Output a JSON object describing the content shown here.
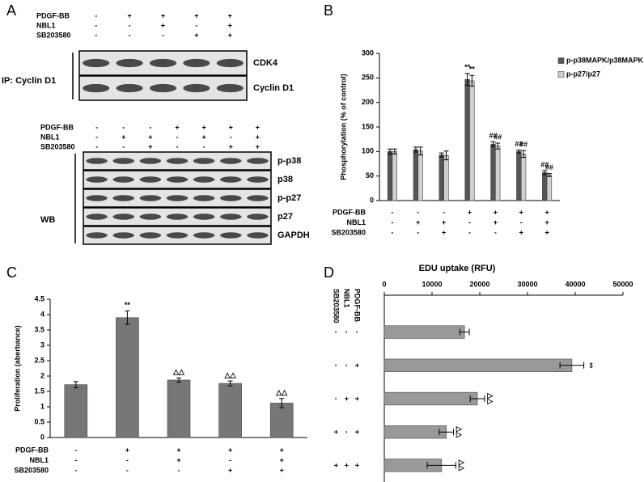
{
  "panel_labels": [
    "A",
    "B",
    "C",
    "D"
  ],
  "blots": [
    {
      "treatments": [
        {
          "name": "PDGF-BB",
          "signs": [
            "-",
            "+",
            "+",
            "+",
            "+"
          ]
        },
        {
          "name": "NBL1",
          "signs": [
            "-",
            "-",
            "+",
            "-",
            "+"
          ]
        },
        {
          "name": "SB203580",
          "signs": [
            "-",
            "-",
            "-",
            "+",
            "+"
          ]
        }
      ],
      "rows": [
        "CDK4",
        "Cyclin D1"
      ],
      "side_label": "IP: Cyclin D1"
    },
    {
      "treatments": [
        {
          "name": "PDGF-BB",
          "signs": [
            "-",
            "-",
            "-",
            "+",
            "+",
            "+",
            "+"
          ]
        },
        {
          "name": "NBL1",
          "signs": [
            "-",
            "+",
            "+",
            "-",
            "+",
            "-",
            "+"
          ]
        },
        {
          "name": "SB203580",
          "signs": [
            "-",
            "-",
            "+",
            "-",
            "-",
            "+",
            "+"
          ]
        }
      ],
      "rows": [
        "p-p38",
        "p38",
        "p-p27",
        "p27",
        "GAPDH"
      ],
      "side_label": "WB"
    }
  ],
  "chart_data": [
    {
      "type": "bar",
      "y_label": "Phosphorylation (% of control)",
      "categories": [
        null,
        null,
        null,
        null,
        null,
        null,
        null
      ],
      "series": [
        {
          "name": "p-p38MAPK/p38MAPK",
          "color": "#555555",
          "values": [
            100,
            104,
            93,
            247,
            115,
            100,
            57
          ],
          "errors": [
            5,
            5,
            4,
            12,
            5,
            3,
            4
          ],
          "annotations": [
            null,
            null,
            null,
            "**",
            "##",
            "##",
            "##"
          ]
        },
        {
          "name": "p-p27/p27",
          "color": "#d0d0d0",
          "values": [
            100,
            101,
            92,
            244,
            111,
            95,
            52
          ],
          "errors": [
            5,
            8,
            9,
            11,
            6,
            7,
            3
          ],
          "annotations": [
            null,
            null,
            null,
            "**",
            "##",
            "##",
            "##"
          ]
        }
      ],
      "ylim": [
        0,
        300
      ],
      "yticks": [
        0,
        50,
        100,
        150,
        200,
        250,
        300
      ],
      "legend": "right",
      "treatments": [
        {
          "name": "PDGF-BB",
          "signs": [
            "-",
            "-",
            "-",
            "+",
            "+",
            "+",
            "+"
          ]
        },
        {
          "name": "NBL1",
          "signs": [
            "-",
            "+",
            "+",
            "-",
            "+",
            "-",
            "+"
          ]
        },
        {
          "name": "SB203580",
          "signs": [
            "-",
            "-",
            "+",
            "-",
            "-",
            "+",
            "+"
          ]
        }
      ]
    },
    {
      "type": "bar",
      "y_label": "Proliferation (aberbance)",
      "categories": [
        null,
        null,
        null,
        null,
        null
      ],
      "series": [
        {
          "color": "#777777",
          "values": [
            1.72,
            3.9,
            1.87,
            1.76,
            1.12
          ],
          "errors": [
            0.1,
            0.22,
            0.07,
            0.08,
            0.15
          ],
          "annotations": [
            null,
            "**",
            "△△",
            "△△",
            "△△"
          ]
        }
      ],
      "ylim": [
        0,
        4.5
      ],
      "yticks": [
        0,
        0.5,
        1,
        1.5,
        2,
        2.5,
        3,
        3.5,
        4,
        4.5
      ],
      "treatments": [
        {
          "name": "PDGF-BB",
          "signs": [
            "-",
            "+",
            "+",
            "+",
            "+"
          ]
        },
        {
          "name": "NBL1",
          "signs": [
            "-",
            "-",
            "+",
            "-",
            "+"
          ]
        },
        {
          "name": "SB203580",
          "signs": [
            "-",
            "-",
            "-",
            "+",
            "+"
          ]
        }
      ]
    },
    {
      "type": "barh",
      "x_label": "EDU uptake (RFU)",
      "categories": [
        null,
        null,
        null,
        null,
        null
      ],
      "series": [
        {
          "color": "#999999",
          "values": [
            16800,
            39300,
            19500,
            13000,
            12000
          ],
          "errors": [
            1000,
            2500,
            1500,
            1500,
            3000
          ],
          "annotations": [
            null,
            "**",
            "△△",
            "△△",
            "△△"
          ]
        }
      ],
      "xlim": [
        0,
        50000
      ],
      "xticks": [
        0,
        10000,
        20000,
        30000,
        40000,
        50000
      ],
      "treatments": [
        {
          "name": "PDGF-BB",
          "signs": [
            "-",
            "+",
            "+",
            "+",
            "+"
          ]
        },
        {
          "name": "NBL1",
          "signs": [
            "-",
            "-",
            "+",
            "-",
            "+"
          ]
        },
        {
          "name": "SB203580",
          "signs": [
            "-",
            "-",
            "-",
            "+",
            "+"
          ]
        }
      ]
    }
  ]
}
